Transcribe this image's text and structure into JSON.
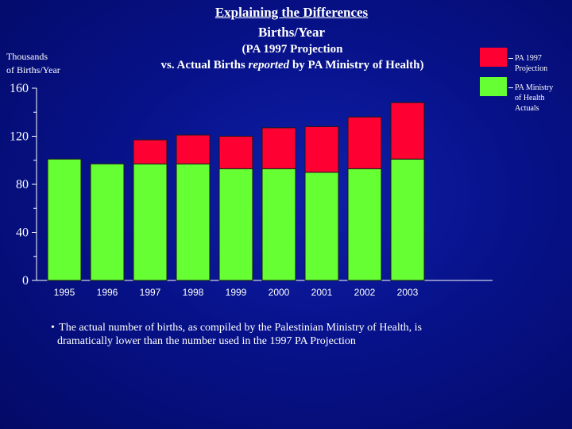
{
  "slide": {
    "title": "Explaining the Differences",
    "subtitle": "Births/Year"
  },
  "chart_data": {
    "type": "bar",
    "stacked": true,
    "subtitle_line1": "(PA 1997 Projection",
    "subtitle_line2_prefix": "vs. Actual Births ",
    "subtitle_line2_emph": "reported",
    "subtitle_line2_suffix": " by PA Ministry of Health)",
    "ylabel_line1": "Thousands",
    "ylabel_line2": "of Births/Year",
    "categories": [
      "1995",
      "1996",
      "1997",
      "1998",
      "1999",
      "2000",
      "2001",
      "2002",
      "2003"
    ],
    "series": [
      {
        "name": "PA Ministry of Health Actuals",
        "color": "#66ff33",
        "values": [
          101,
          97,
          97,
          97,
          93,
          93,
          90,
          93,
          101
        ]
      },
      {
        "name": "PA 1997 Projection",
        "color": "#ff0033",
        "values": [
          0,
          0,
          20,
          24,
          27,
          34,
          38,
          43,
          47
        ]
      }
    ],
    "ylim": [
      0,
      160
    ],
    "yticks": [
      "0",
      "40",
      "80",
      "120",
      "160"
    ],
    "ytick_values": [
      0,
      40,
      80,
      120,
      160
    ],
    "legend": [
      {
        "label_line1": "PA 1997",
        "label_line2": "Projection",
        "color": "#ff0033"
      },
      {
        "label_line1": "PA Ministry",
        "label_line2": "of Health",
        "label_line3": "Actuals",
        "color": "#66ff33"
      }
    ],
    "legend_position": "top-right"
  },
  "note": {
    "bullet": "•",
    "line1": "The actual number of births, as compiled by the Palestinian Ministry of Health, is",
    "line2": "dramatically lower than the number used in the 1997 PA Projection"
  }
}
